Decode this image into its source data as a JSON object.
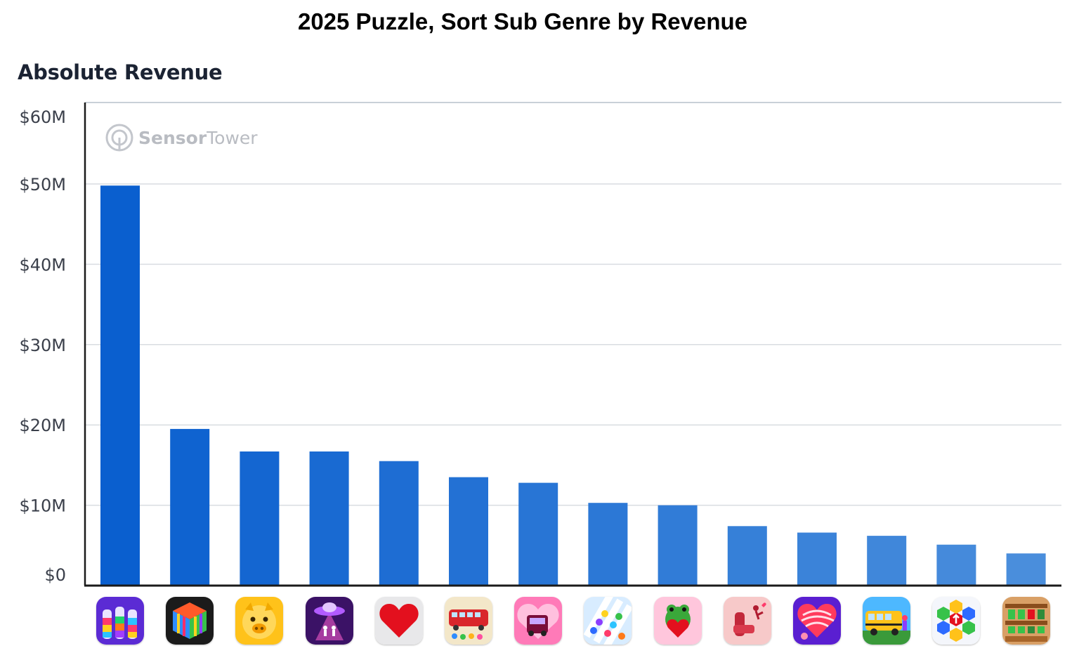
{
  "title": "2025 Puzzle, Sort Sub Genre by Revenue",
  "subtitle": "Absolute Revenue",
  "watermark": {
    "brand_bold": "Sensor",
    "brand_light": "Tower",
    "icon": "sensor-tower-logo-icon"
  },
  "colors": {
    "bar_dark": "#0a5fcf",
    "bar_light": "#4a8edc",
    "grid": "#d9dce1",
    "axis": "#1a1a1a"
  },
  "chart_data": {
    "type": "bar",
    "ylabel": "",
    "xlabel": "",
    "ylim": [
      0,
      60
    ],
    "y_unit": "millions USD",
    "yticks": [
      {
        "value": 0,
        "label": "$0"
      },
      {
        "value": 10,
        "label": "$10M"
      },
      {
        "value": 20,
        "label": "$20M"
      },
      {
        "value": 30,
        "label": "$30M"
      },
      {
        "value": 40,
        "label": "$40M"
      },
      {
        "value": 50,
        "label": "$50M"
      },
      {
        "value": 60,
        "label": "$60M"
      }
    ],
    "grid": true,
    "categories": [
      "water-sort-icon",
      "color-cube-icon",
      "pig-face-icon",
      "ufo-icon",
      "pixel-heart-icon",
      "bus-jam-icon",
      "pink-car-icon",
      "ball-sort-icon",
      "frog-heart-icon",
      "love-seat-icon",
      "yarn-ball-icon",
      "school-bus-icon",
      "hexa-arrows-icon",
      "block-shelf-icon"
    ],
    "values": [
      49.8,
      19.5,
      16.7,
      16.7,
      15.5,
      13.5,
      12.8,
      10.3,
      10.0,
      7.4,
      6.6,
      6.2,
      5.1,
      4.0
    ]
  }
}
